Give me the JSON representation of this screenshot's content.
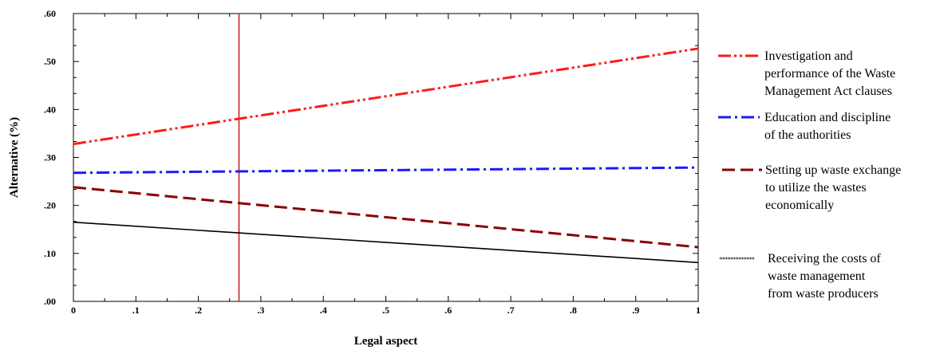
{
  "chart_data": {
    "type": "line",
    "title": "",
    "xlabel": "Legal aspect",
    "ylabel": "Alternative (%)",
    "xlim": [
      0,
      1
    ],
    "ylim": [
      0,
      0.6
    ],
    "x_ticks": [
      0,
      0.1,
      0.2,
      0.3,
      0.4,
      0.5,
      0.6,
      0.7,
      0.8,
      0.9,
      1
    ],
    "x_tick_labels": [
      "0",
      ".1",
      ".2",
      ".3",
      ".4",
      ".5",
      ".6",
      ".7",
      ".8",
      ".9",
      "1"
    ],
    "y_ticks": [
      0,
      0.1,
      0.2,
      0.3,
      0.4,
      0.5,
      0.6
    ],
    "y_tick_labels": [
      ".00",
      ".10",
      ".20",
      ".30",
      ".40",
      ".50",
      ".60"
    ],
    "grid": false,
    "legend_position": "right",
    "reference_line": {
      "x": 0.265,
      "color": "#cc2222"
    },
    "series": [
      {
        "name": "Investigation and performance of the Waste Management Act clauses",
        "name_lines": [
          "Investigation and",
          "performance of the Waste",
          "Management Act clauses"
        ],
        "x": [
          0,
          1
        ],
        "y": [
          0.328,
          0.527
        ],
        "color": "#ff1a1a",
        "style": "dash-dot-dot"
      },
      {
        "name": "Education and discipline of the authorities",
        "name_lines": [
          "Education and discipline",
          "of the authorities"
        ],
        "x": [
          0,
          1
        ],
        "y": [
          0.268,
          0.279
        ],
        "color": "#1a1aff",
        "style": "dash-dot"
      },
      {
        "name": "Setting up waste exchange to utilize the wastes economically",
        "name_lines": [
          " Setting up waste exchange",
          "to utilize the wastes",
          "economically"
        ],
        "x": [
          0,
          1
        ],
        "y": [
          0.238,
          0.113
        ],
        "color": "#8b0000",
        "style": "dashed"
      },
      {
        "name": "Receiving the costs of waste management from waste producers",
        "name_lines": [
          "Receiving the costs of",
          "waste management",
          " from waste producers"
        ],
        "x": [
          0,
          1
        ],
        "y": [
          0.165,
          0.081
        ],
        "color": "#000000",
        "style": "solid"
      }
    ]
  }
}
